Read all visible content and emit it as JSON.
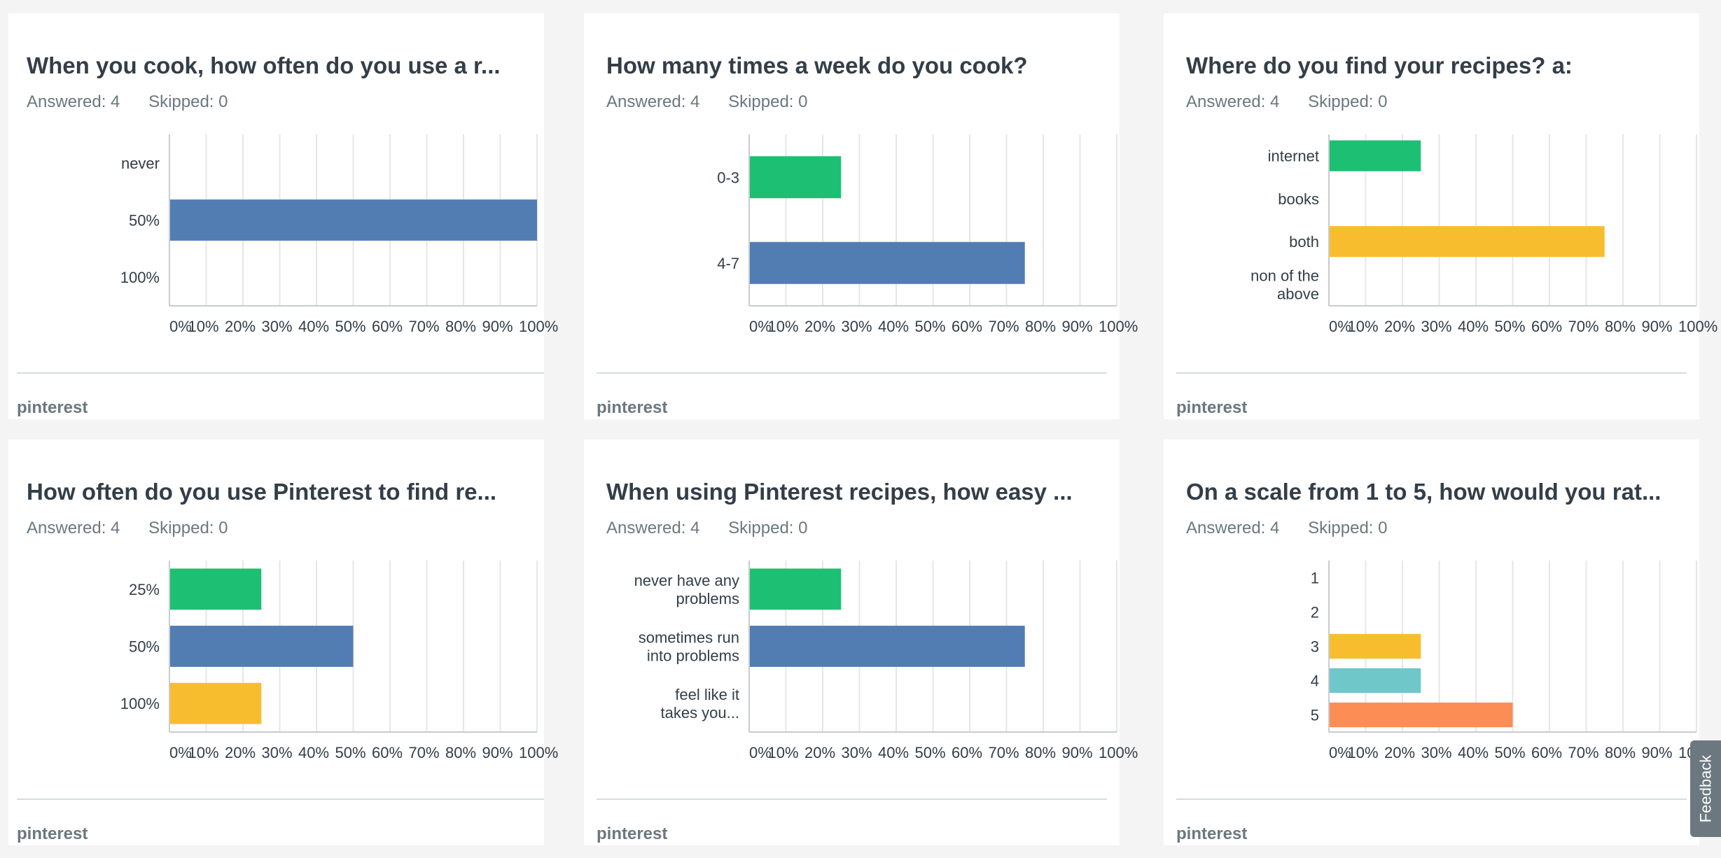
{
  "feedback_label": "Feedback",
  "tick_labels": [
    "0%",
    "10%",
    "20%",
    "30%",
    "40%",
    "50%",
    "60%",
    "70%",
    "80%",
    "90%",
    "100%"
  ],
  "colors": {
    "green": "#1dbf73",
    "blue": "#527db3",
    "yellow": "#f8bd2f",
    "teal": "#6fc7c9",
    "orange": "#fb8d55",
    "grid": "#e4e7e8",
    "axis": "#c8cccf",
    "label": "#333e48"
  },
  "cards": [
    {
      "title": "When you cook, how often do you use a r...",
      "answered": "Answered: 4",
      "skipped": "Skipped: 0",
      "footer": "pinterest"
    },
    {
      "title": "How many times a week do you cook?",
      "answered": "Answered: 4",
      "skipped": "Skipped: 0",
      "footer": "pinterest"
    },
    {
      "title": "Where do you find your recipes? a:",
      "answered": "Answered: 4",
      "skipped": "Skipped: 0",
      "footer": "pinterest"
    },
    {
      "title": "How often do you use Pinterest to find re...",
      "answered": "Answered: 4",
      "skipped": "Skipped: 0",
      "footer": "pinterest"
    },
    {
      "title": "When using Pinterest recipes, how easy ...",
      "answered": "Answered: 4",
      "skipped": "Skipped: 0",
      "footer": "pinterest"
    },
    {
      "title": "On a scale from 1 to 5, how would you rat...",
      "answered": "Answered: 4",
      "skipped": "Skipped: 0",
      "footer": "pinterest"
    }
  ],
  "chart_data": [
    {
      "type": "bar",
      "orientation": "horizontal",
      "title": "When you cook, how often do you use a r...",
      "categories": [
        [
          "never"
        ],
        [
          "50%"
        ],
        [
          "100%"
        ]
      ],
      "values": [
        0,
        100,
        0
      ],
      "colors": [
        "green",
        "blue",
        "yellow"
      ],
      "xlim": [
        0,
        100
      ],
      "x_unit": "%",
      "grid": true
    },
    {
      "type": "bar",
      "orientation": "horizontal",
      "title": "How many times a week do you cook?",
      "categories": [
        [
          "0-3"
        ],
        [
          "4-7"
        ]
      ],
      "values": [
        25,
        75
      ],
      "colors": [
        "green",
        "blue"
      ],
      "xlim": [
        0,
        100
      ],
      "x_unit": "%",
      "grid": true
    },
    {
      "type": "bar",
      "orientation": "horizontal",
      "title": "Where do you find your recipes? a:",
      "categories": [
        [
          "internet"
        ],
        [
          "books"
        ],
        [
          "both"
        ],
        [
          "non of the",
          "above"
        ]
      ],
      "values": [
        25,
        0,
        75,
        0
      ],
      "colors": [
        "green",
        "blue",
        "yellow",
        "teal"
      ],
      "xlim": [
        0,
        100
      ],
      "x_unit": "%",
      "grid": true
    },
    {
      "type": "bar",
      "orientation": "horizontal",
      "title": "How often do you use Pinterest to find re...",
      "categories": [
        [
          "25%"
        ],
        [
          "50%"
        ],
        [
          "100%"
        ]
      ],
      "values": [
        25,
        50,
        25
      ],
      "colors": [
        "green",
        "blue",
        "yellow"
      ],
      "xlim": [
        0,
        100
      ],
      "x_unit": "%",
      "grid": true
    },
    {
      "type": "bar",
      "orientation": "horizontal",
      "title": "When using Pinterest recipes, how easy ...",
      "categories": [
        [
          "never have any",
          "problems"
        ],
        [
          "sometimes run",
          "into problems"
        ],
        [
          "feel like it",
          "takes you..."
        ]
      ],
      "values": [
        25,
        75,
        0
      ],
      "colors": [
        "green",
        "blue",
        "yellow"
      ],
      "xlim": [
        0,
        100
      ],
      "x_unit": "%",
      "grid": true
    },
    {
      "type": "bar",
      "orientation": "horizontal",
      "title": "On a scale from 1 to 5, how would you rat...",
      "categories": [
        [
          "1"
        ],
        [
          "2"
        ],
        [
          "3"
        ],
        [
          "4"
        ],
        [
          "5"
        ]
      ],
      "values": [
        0,
        0,
        25,
        25,
        50
      ],
      "colors": [
        "green",
        "blue",
        "yellow",
        "teal",
        "orange"
      ],
      "xlim": [
        0,
        100
      ],
      "x_unit": "%",
      "grid": true
    }
  ]
}
